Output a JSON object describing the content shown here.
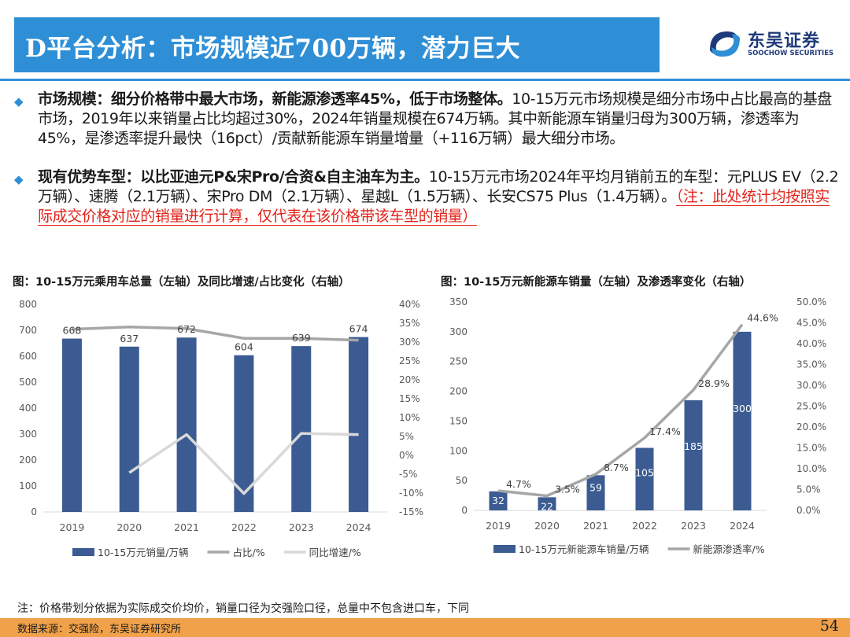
{
  "header": {
    "title": "D平台分析：市场规模近700万辆，潜力巨大",
    "logo_cn": "东吴证券",
    "logo_en": "SOOCHOW SECURITIES",
    "accent": "#2f8fd6"
  },
  "bullets": [
    {
      "heading": "市场规模：细分价格带中最大市场，新能源渗透率45%，低于市场整体。",
      "body": "10-15万元市场规模是细分市场中占比最高的基盘市场，2019年以来销量占比均超过30%，2024年销量规模在674万辆。其中新能源车销量归母为300万辆，渗透率为45%，是渗透率提升最快（16pct）/贡献新能源车销量增量（+116万辆）最大细分市场。"
    },
    {
      "heading": "现有优势车型：以比亚迪元P&宋Pro/合资&自主油车为主。",
      "body": "10-15万元市场2024年平均月销前五的车型：元PLUS EV（2.2万辆）、速腾（2.1万辆）、宋Pro DM（2.1万辆）、星越L（1.5万辆）、长安CS75 Plus（1.4万辆）。",
      "note": "（注：此处统计均按照实际成交价格对应的销量进行计算，仅代表在该价格带该车型的销量）"
    }
  ],
  "footnote": "注：价格带划分依据为实际成交价均价，销量口径为交强险口径，总量中不包含进口车，下同",
  "source": "数据来源：交强险，东吴证券研究所",
  "page_number": "54",
  "chart_data": [
    {
      "type": "bar",
      "title": "图：10-15万元乘用车总量（左轴）及同比增速/占比变化（右轴）",
      "categories": [
        "2019",
        "2020",
        "2021",
        "2022",
        "2023",
        "2024"
      ],
      "y_ticks": [
        "800",
        "700",
        "600",
        "500",
        "400",
        "300",
        "200",
        "100",
        "0"
      ],
      "y2_ticks": [
        "40%",
        "35%",
        "30%",
        "25%",
        "20%",
        "15%",
        "10%",
        "5%",
        "0%",
        "-5%",
        "-10%",
        "-15%"
      ],
      "ylim": [
        0,
        800
      ],
      "y2lim": [
        -15,
        40
      ],
      "series": [
        {
          "name": "10-15万元销量/万辆",
          "kind": "bar",
          "color": "#3b5b92",
          "values": [
            668,
            637,
            672,
            604,
            639,
            674
          ],
          "labels": [
            "668",
            "637",
            "672",
            "604",
            "639",
            "674"
          ]
        },
        {
          "name": "占比/%",
          "kind": "line",
          "axis": "right",
          "color": "#a6a6a6",
          "values": [
            33.4,
            34.0,
            33.6,
            31.0,
            31.0,
            30.5
          ]
        },
        {
          "name": "同比增速/%",
          "kind": "line",
          "axis": "right",
          "color": "#d9d9d9",
          "values": [
            null,
            -4.6,
            5.5,
            -10.1,
            5.8,
            5.5
          ]
        }
      ],
      "grid": false,
      "legend": "bottom"
    },
    {
      "type": "bar",
      "title": "图：10-15万元新能源车销量（左轴）及渗透率变化（右轴）",
      "categories": [
        "2019",
        "2020",
        "2021",
        "2022",
        "2023",
        "2024"
      ],
      "y_ticks": [
        "350",
        "300",
        "250",
        "200",
        "150",
        "100",
        "50",
        "0"
      ],
      "y2_ticks": [
        "50.0%",
        "45.0%",
        "40.0%",
        "35.0%",
        "30.0%",
        "25.0%",
        "20.0%",
        "15.0%",
        "10.0%",
        "5.0%",
        "0.0%"
      ],
      "ylim": [
        0,
        350
      ],
      "y2lim": [
        0,
        50
      ],
      "series": [
        {
          "name": "10-15万元新能源车销量/万辆",
          "kind": "bar",
          "color": "#3b5b92",
          "values": [
            32,
            22,
            59,
            105,
            185,
            300
          ],
          "labels": [
            "32",
            "22",
            "59",
            "105",
            "185",
            "300"
          ]
        },
        {
          "name": "新能源渗透率/%",
          "kind": "line",
          "axis": "right",
          "color": "#a6a6a6",
          "values": [
            4.7,
            3.5,
            8.7,
            17.4,
            28.9,
            44.6
          ],
          "labels": [
            "4.7%",
            "3.5%",
            "8.7%",
            "17.4%",
            "28.9%",
            "44.6%"
          ]
        }
      ],
      "grid": false,
      "legend": "bottom"
    }
  ]
}
